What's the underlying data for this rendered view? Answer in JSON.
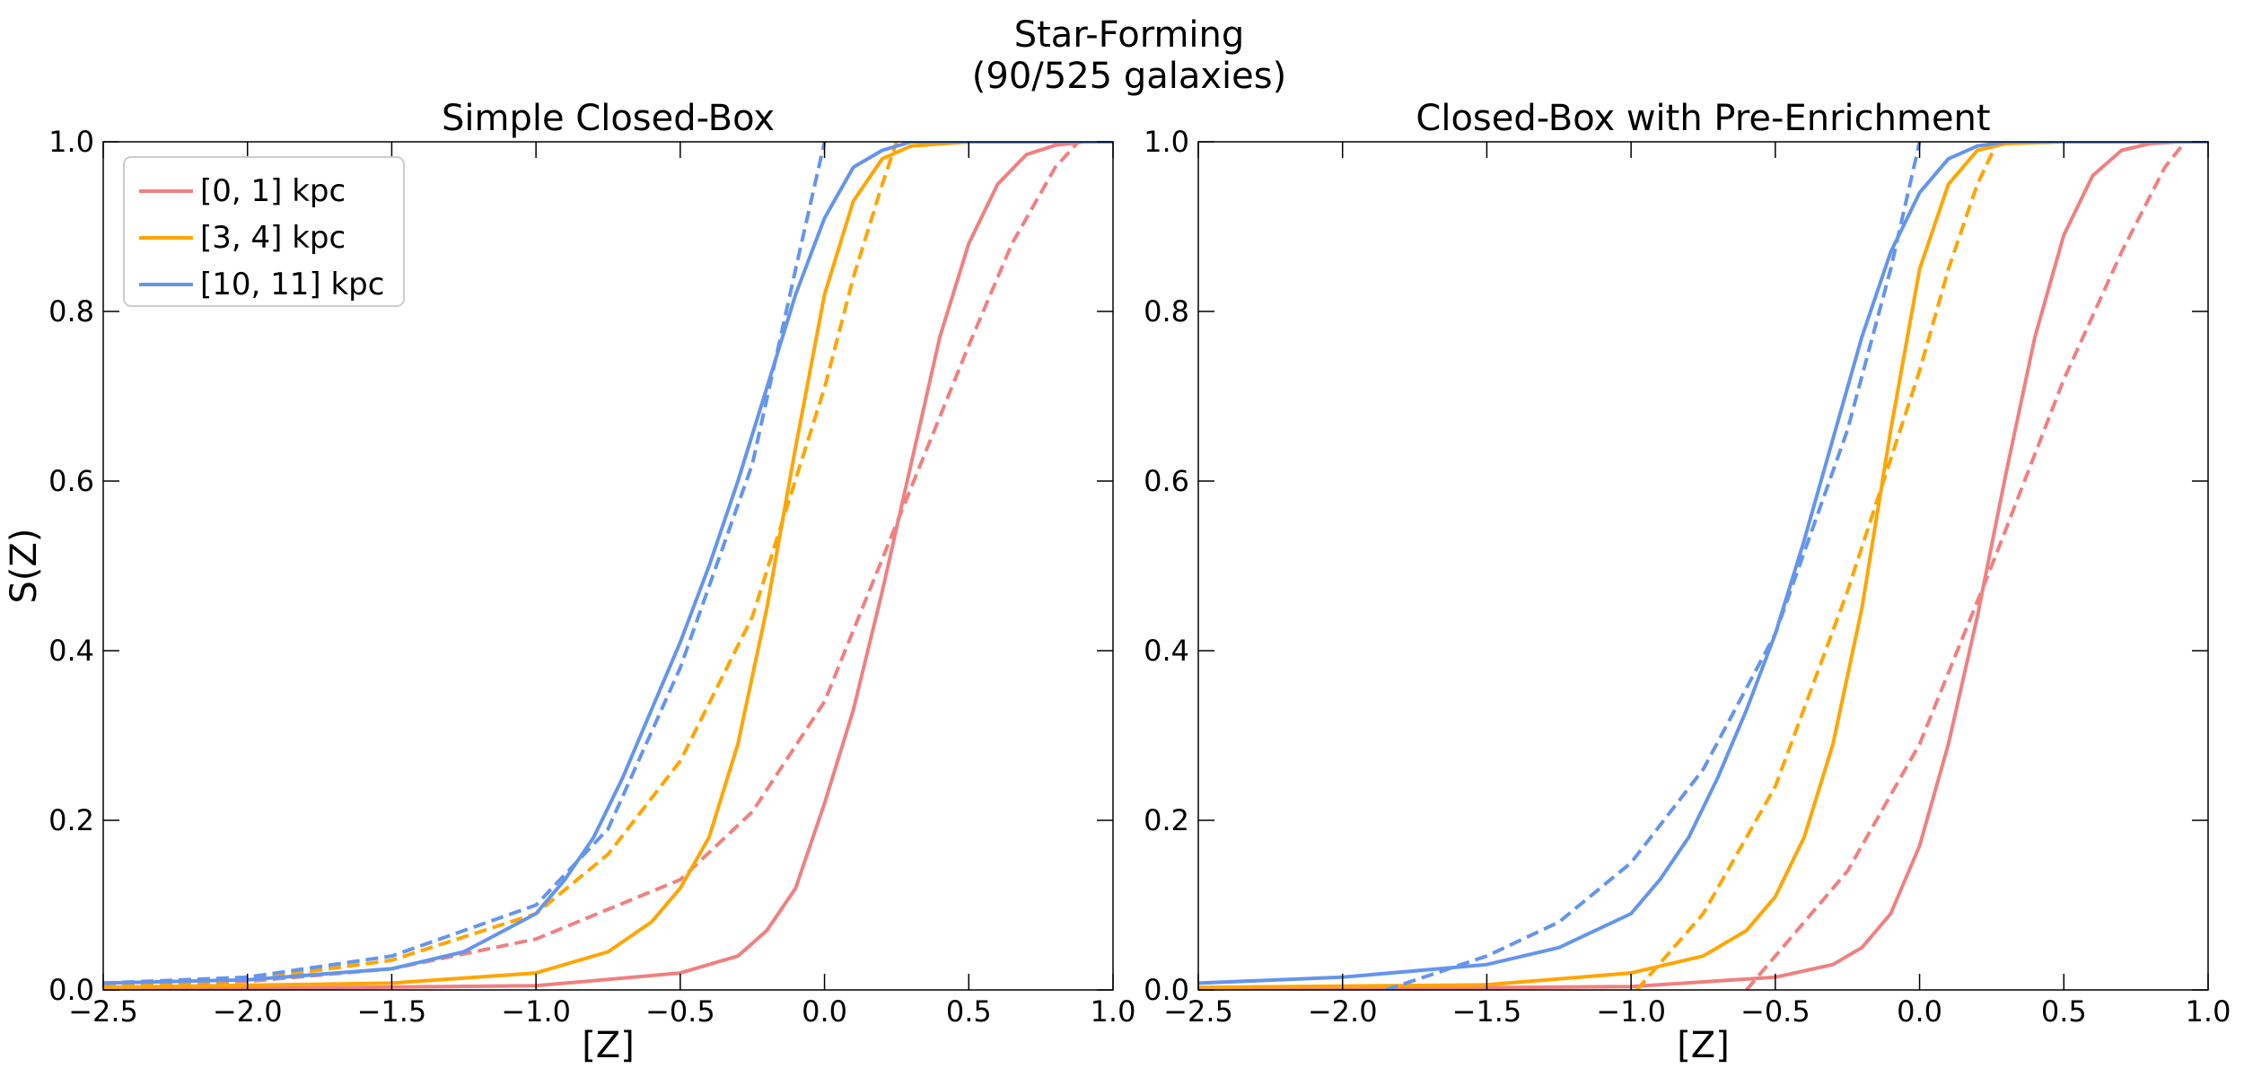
{
  "figure": {
    "title_line1": "Star-Forming",
    "title_line2": "(90/525 galaxies)"
  },
  "chart_data": [
    {
      "type": "line",
      "title": "Simple Closed-Box",
      "xlabel": "[Z]",
      "ylabel": "S(Z)",
      "xlim": [
        -2.5,
        1.0
      ],
      "ylim": [
        0.0,
        1.0
      ],
      "xticks": [
        -2.5,
        -2.0,
        -1.5,
        -1.0,
        -0.5,
        0.0,
        0.5,
        1.0
      ],
      "xtick_labels": [
        "−2.5",
        "−2.0",
        "−1.5",
        "−1.0",
        "−0.5",
        "0.0",
        "0.5",
        "1.0"
      ],
      "yticks": [
        0.0,
        0.2,
        0.4,
        0.6,
        0.8,
        1.0
      ],
      "ytick_labels": [
        "0.0",
        "0.2",
        "0.4",
        "0.6",
        "0.8",
        "1.0"
      ],
      "grid": false,
      "legend": {
        "placement": "top-left",
        "entries": [
          "[0, 1] kpc",
          "[3, 4] kpc",
          "[10, 11] kpc"
        ]
      },
      "series": [
        {
          "name": "[0, 1] kpc",
          "style": "solid",
          "color": "#F08080",
          "x": [
            -2.5,
            -1.0,
            -0.5,
            -0.3,
            -0.2,
            -0.1,
            0.0,
            0.1,
            0.2,
            0.3,
            0.4,
            0.5,
            0.6,
            0.7,
            0.8,
            0.9,
            1.0
          ],
          "y": [
            0.0,
            0.005,
            0.02,
            0.04,
            0.07,
            0.12,
            0.22,
            0.33,
            0.47,
            0.62,
            0.77,
            0.88,
            0.95,
            0.985,
            0.996,
            1.0,
            1.0
          ]
        },
        {
          "name": "[0, 1] kpc",
          "style": "dashed",
          "color": "#F08080",
          "x": [
            -2.5,
            -2.0,
            -1.5,
            -1.0,
            -0.5,
            -0.25,
            0.0,
            0.25,
            0.5,
            0.65,
            0.8,
            0.88
          ],
          "y": [
            0.005,
            0.01,
            0.025,
            0.06,
            0.13,
            0.21,
            0.34,
            0.55,
            0.76,
            0.88,
            0.97,
            1.0
          ]
        },
        {
          "name": "[3, 4] kpc",
          "style": "solid",
          "color": "#FFA500",
          "x": [
            -2.5,
            -1.5,
            -1.0,
            -0.75,
            -0.6,
            -0.5,
            -0.4,
            -0.3,
            -0.2,
            -0.1,
            0.0,
            0.1,
            0.2,
            0.3,
            0.5,
            1.0
          ],
          "y": [
            0.003,
            0.008,
            0.02,
            0.045,
            0.08,
            0.12,
            0.18,
            0.29,
            0.45,
            0.64,
            0.82,
            0.93,
            0.98,
            0.995,
            1.0,
            1.0
          ]
        },
        {
          "name": "[3, 4] kpc",
          "style": "dashed",
          "color": "#FFA500",
          "x": [
            -2.5,
            -2.0,
            -1.5,
            -1.0,
            -0.75,
            -0.5,
            -0.25,
            0.0,
            0.1,
            0.2,
            0.25
          ],
          "y": [
            0.004,
            0.012,
            0.035,
            0.09,
            0.16,
            0.27,
            0.44,
            0.71,
            0.84,
            0.95,
            1.0
          ]
        },
        {
          "name": "[10, 11] kpc",
          "style": "solid",
          "color": "#6495ED",
          "x": [
            -2.5,
            -2.0,
            -1.5,
            -1.25,
            -1.0,
            -0.9,
            -0.8,
            -0.7,
            -0.6,
            -0.5,
            -0.4,
            -0.3,
            -0.2,
            -0.1,
            0.0,
            0.1,
            0.2,
            0.3,
            0.5,
            1.0
          ],
          "y": [
            0.008,
            0.012,
            0.025,
            0.045,
            0.09,
            0.13,
            0.18,
            0.25,
            0.33,
            0.41,
            0.5,
            0.6,
            0.71,
            0.82,
            0.91,
            0.97,
            0.99,
            1.0,
            1.0,
            1.0
          ]
        },
        {
          "name": "[10, 11] kpc",
          "style": "dashed",
          "color": "#6495ED",
          "x": [
            -2.5,
            -2.0,
            -1.5,
            -1.0,
            -0.75,
            -0.5,
            -0.25,
            -0.1,
            0.0
          ],
          "y": [
            0.008,
            0.015,
            0.04,
            0.1,
            0.19,
            0.38,
            0.62,
            0.85,
            1.0
          ]
        }
      ]
    },
    {
      "type": "line",
      "title": "Closed-Box with Pre-Enrichment",
      "xlabel": "[Z]",
      "ylabel": "",
      "xlim": [
        -2.5,
        1.0
      ],
      "ylim": [
        0.0,
        1.0
      ],
      "xticks": [
        -2.5,
        -2.0,
        -1.5,
        -1.0,
        -0.5,
        0.0,
        0.5,
        1.0
      ],
      "xtick_labels": [
        "−2.5",
        "−2.0",
        "−1.5",
        "−1.0",
        "−0.5",
        "0.0",
        "0.5",
        "1.0"
      ],
      "yticks": [
        0.0,
        0.2,
        0.4,
        0.6,
        0.8,
        1.0
      ],
      "ytick_labels": [
        "0.0",
        "0.2",
        "0.4",
        "0.6",
        "0.8",
        "1.0"
      ],
      "grid": false,
      "series": [
        {
          "name": "[0, 1] kpc",
          "style": "solid",
          "color": "#F08080",
          "x": [
            -2.5,
            -1.0,
            -0.5,
            -0.3,
            -0.2,
            -0.1,
            0.0,
            0.1,
            0.2,
            0.3,
            0.4,
            0.5,
            0.6,
            0.7,
            0.8,
            0.9,
            1.0
          ],
          "y": [
            0.0,
            0.004,
            0.015,
            0.03,
            0.05,
            0.09,
            0.17,
            0.29,
            0.44,
            0.61,
            0.77,
            0.89,
            0.96,
            0.99,
            0.998,
            1.0,
            1.0
          ]
        },
        {
          "name": "[0, 1] kpc",
          "style": "dashed",
          "color": "#F08080",
          "x": [
            -0.6,
            -0.5,
            -0.25,
            0.0,
            0.25,
            0.5,
            0.7,
            0.85,
            0.92
          ],
          "y": [
            0.0,
            0.04,
            0.14,
            0.29,
            0.5,
            0.72,
            0.87,
            0.97,
            1.0
          ]
        },
        {
          "name": "[3, 4] kpc",
          "style": "solid",
          "color": "#FFA500",
          "x": [
            -2.5,
            -1.5,
            -1.0,
            -0.75,
            -0.6,
            -0.5,
            -0.4,
            -0.3,
            -0.2,
            -0.1,
            0.0,
            0.1,
            0.2,
            0.3,
            0.5,
            1.0
          ],
          "y": [
            0.003,
            0.006,
            0.02,
            0.04,
            0.07,
            0.11,
            0.18,
            0.29,
            0.45,
            0.66,
            0.85,
            0.95,
            0.99,
            0.998,
            1.0,
            1.0
          ]
        },
        {
          "name": "[3, 4] kpc",
          "style": "dashed",
          "color": "#FFA500",
          "x": [
            -0.98,
            -0.75,
            -0.5,
            -0.25,
            0.0,
            0.1,
            0.2,
            0.27
          ],
          "y": [
            0.0,
            0.09,
            0.24,
            0.47,
            0.73,
            0.85,
            0.95,
            1.0
          ]
        },
        {
          "name": "[10, 11] kpc",
          "style": "solid",
          "color": "#6495ED",
          "x": [
            -2.5,
            -2.0,
            -1.5,
            -1.25,
            -1.0,
            -0.9,
            -0.8,
            -0.7,
            -0.6,
            -0.5,
            -0.4,
            -0.3,
            -0.2,
            -0.1,
            0.0,
            0.1,
            0.2,
            0.3,
            0.5,
            1.0
          ],
          "y": [
            0.008,
            0.015,
            0.03,
            0.05,
            0.09,
            0.13,
            0.18,
            0.25,
            0.33,
            0.42,
            0.53,
            0.65,
            0.77,
            0.87,
            0.94,
            0.98,
            0.995,
            1.0,
            1.0,
            1.0
          ]
        },
        {
          "name": "[10, 11] kpc",
          "style": "dashed",
          "color": "#6495ED",
          "x": [
            -1.85,
            -1.5,
            -1.25,
            -1.0,
            -0.75,
            -0.5,
            -0.25,
            -0.1,
            0.0
          ],
          "y": [
            0.0,
            0.04,
            0.08,
            0.15,
            0.26,
            0.42,
            0.66,
            0.85,
            1.0
          ]
        }
      ]
    }
  ]
}
